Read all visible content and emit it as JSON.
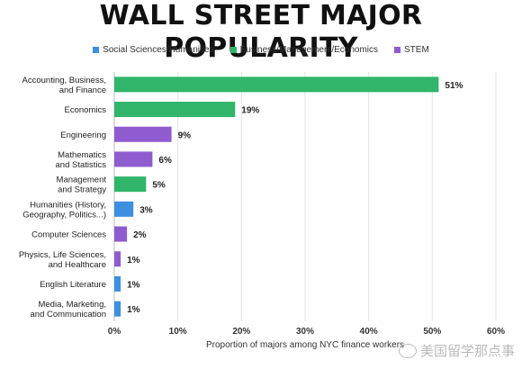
{
  "title": "WALL STREET MAJOR POPULARITY",
  "watermark": "美国留学那点事",
  "legend": [
    {
      "label": "Social Sciences/Humanities",
      "color": "#3d8fe0"
    },
    {
      "label": "Business/Management/Economics",
      "color": "#30b56a"
    },
    {
      "label": "STEM",
      "color": "#8e5ccf"
    }
  ],
  "chart_data": {
    "type": "bar",
    "orientation": "horizontal",
    "xlabel": "Proportion of majors among NYC finance workers",
    "xlim": [
      0,
      60
    ],
    "xticks": [
      "0%",
      "10%",
      "20%",
      "30%",
      "40%",
      "50%",
      "60%"
    ],
    "grid": true,
    "legend_position": "top",
    "categories": [
      {
        "label": [
          "Accounting, Business,",
          "and Finance"
        ],
        "value": 51,
        "group": "Business/Management/Economics",
        "value_label": "51%"
      },
      {
        "label": [
          "Economics"
        ],
        "value": 19,
        "group": "Business/Management/Economics",
        "value_label": "19%"
      },
      {
        "label": [
          "Engineering"
        ],
        "value": 9,
        "group": "STEM",
        "value_label": "9%"
      },
      {
        "label": [
          "Mathematics",
          "and Statistics"
        ],
        "value": 6,
        "group": "STEM",
        "value_label": "6%"
      },
      {
        "label": [
          "Management",
          "and Strategy"
        ],
        "value": 5,
        "group": "Business/Management/Economics",
        "value_label": "5%"
      },
      {
        "label": [
          "Humanities (History,",
          "Geography, Politics...)"
        ],
        "value": 3,
        "group": "Social Sciences/Humanities",
        "value_label": "3%"
      },
      {
        "label": [
          "Computer Sciences"
        ],
        "value": 2,
        "group": "STEM",
        "value_label": "2%"
      },
      {
        "label": [
          "Physics, Life Sciences,",
          "and Healthcare"
        ],
        "value": 1,
        "group": "STEM",
        "value_label": "1%"
      },
      {
        "label": [
          "English Literature"
        ],
        "value": 1,
        "group": "Social Sciences/Humanities",
        "value_label": "1%"
      },
      {
        "label": [
          "Media, Marketing,",
          "and Communication"
        ],
        "value": 1,
        "group": "Social Sciences/Humanities",
        "value_label": "1%"
      }
    ]
  }
}
